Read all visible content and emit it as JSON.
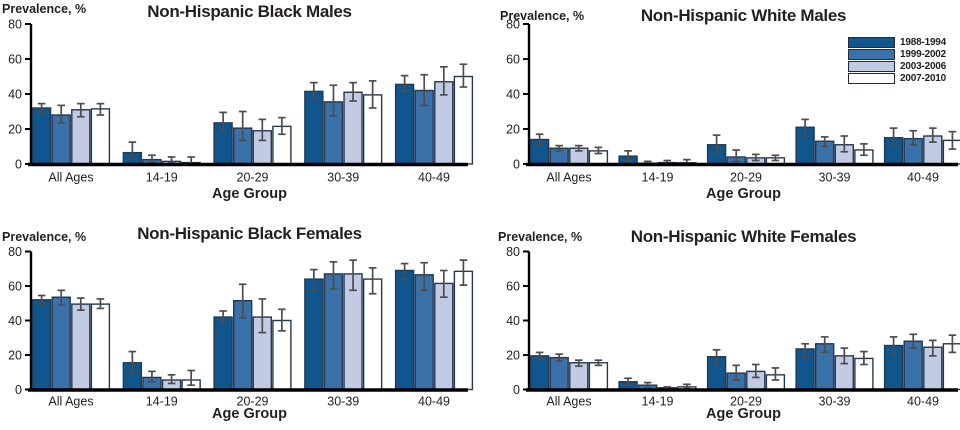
{
  "figure": {
    "background": "#ffffff"
  },
  "colors": {
    "series_fills": [
      "#10568E",
      "#3B71A9",
      "#C2CBE3",
      "#FFFFFF"
    ],
    "bar_outline": "#25384E",
    "error_bar": "#4D4D4D",
    "axis": "#000000",
    "text": "#231F20"
  },
  "legend": {
    "labels": [
      "1988-1994",
      "1999-2002",
      "2003-2006",
      "2007-2010"
    ]
  },
  "chart_data": [
    {
      "type": "bar",
      "title": "Non-Hispanic Black Males",
      "ylabel": "Prevalence, %",
      "xlabel": "Age Group",
      "categories": [
        "All Ages",
        "14-19",
        "20-29",
        "30-39",
        "40-49"
      ],
      "ylim": [
        0,
        80
      ],
      "yticks": [
        0,
        20,
        40,
        60,
        80
      ],
      "error_bars": true,
      "legend": false,
      "series": [
        {
          "name": "1988-1994",
          "values": [
            32,
            6.5,
            23.5,
            41.5,
            45.5
          ],
          "err_low": [
            29,
            3,
            18.5,
            37,
            41.5
          ],
          "err_high": [
            34.5,
            12.5,
            29.5,
            46.5,
            50.5
          ]
        },
        {
          "name": "1999-2002",
          "values": [
            28,
            2.5,
            20.5,
            35.5,
            42
          ],
          "err_low": [
            23.5,
            1,
            13.5,
            27.5,
            33.5
          ],
          "err_high": [
            33.5,
            5,
            30,
            45,
            51
          ]
        },
        {
          "name": "2003-2006",
          "values": [
            31,
            1.5,
            19,
            41,
            47
          ],
          "err_low": [
            27,
            0.5,
            13.5,
            36,
            39.5
          ],
          "err_high": [
            34.5,
            4,
            25.5,
            46.5,
            55.5
          ]
        },
        {
          "name": "2007-2010",
          "values": [
            31.5,
            0.8,
            21.5,
            39.5,
            50
          ],
          "err_low": [
            28,
            0,
            17,
            32,
            44
          ],
          "err_high": [
            34.5,
            4,
            26.5,
            47.5,
            57
          ]
        }
      ]
    },
    {
      "type": "bar",
      "title": "Non-Hispanic White Males",
      "ylabel": "Prevalence, %",
      "xlabel": "Age Group",
      "categories": [
        "All Ages",
        "14-19",
        "20-29",
        "30-39",
        "40-49"
      ],
      "ylim": [
        0,
        80
      ],
      "yticks": [
        0,
        20,
        40,
        60,
        80
      ],
      "error_bars": true,
      "legend": true,
      "series": [
        {
          "name": "1988-1994",
          "values": [
            14,
            4.5,
            11,
            21,
            15
          ],
          "err_low": [
            11,
            2,
            6,
            16,
            10.5
          ],
          "err_high": [
            17,
            7.5,
            16.5,
            25.5,
            20.5
          ]
        },
        {
          "name": "1999-2002",
          "values": [
            9,
            0.5,
            4,
            13,
            14.5
          ],
          "err_low": [
            7.5,
            0.1,
            1.5,
            10,
            11
          ],
          "err_high": [
            10.5,
            1.5,
            8,
            15.5,
            19
          ]
        },
        {
          "name": "2003-2006",
          "values": [
            9,
            0.8,
            3.5,
            11,
            16
          ],
          "err_low": [
            7.5,
            0.3,
            2,
            7,
            12.5
          ],
          "err_high": [
            10.5,
            2,
            5.5,
            16,
            20.5
          ]
        },
        {
          "name": "2007-2010",
          "values": [
            7.5,
            0.7,
            3.5,
            8,
            13.5
          ],
          "err_low": [
            6,
            0,
            2,
            5,
            8.5
          ],
          "err_high": [
            9.5,
            2.5,
            5,
            11.5,
            18.5
          ]
        }
      ]
    },
    {
      "type": "bar",
      "title": "Non-Hispanic Black Females",
      "ylabel": "Prevalence, %",
      "xlabel": "Age Group",
      "categories": [
        "All Ages",
        "14-19",
        "20-29",
        "30-39",
        "40-49"
      ],
      "ylim": [
        0,
        80
      ],
      "yticks": [
        0,
        20,
        40,
        60,
        80
      ],
      "error_bars": true,
      "legend": false,
      "series": [
        {
          "name": "1988-1994",
          "values": [
            52,
            15.5,
            42,
            64,
            69
          ],
          "err_low": [
            49.5,
            10,
            38.5,
            57.5,
            64
          ],
          "err_high": [
            54.5,
            22,
            45.5,
            69.5,
            73
          ]
        },
        {
          "name": "1999-2002",
          "values": [
            53.5,
            7,
            51.5,
            67,
            66.5
          ],
          "err_low": [
            49,
            4.5,
            41.5,
            58.5,
            57.5
          ],
          "err_high": [
            57.5,
            10.5,
            61,
            74,
            73.5
          ]
        },
        {
          "name": "2003-2006",
          "values": [
            49.5,
            5.5,
            42,
            67,
            61.5
          ],
          "err_low": [
            46,
            3.5,
            33,
            57.5,
            53.5
          ],
          "err_high": [
            53,
            8.5,
            52.5,
            75,
            69
          ]
        },
        {
          "name": "2007-2010",
          "values": [
            49.5,
            5.5,
            40,
            64,
            68.5
          ],
          "err_low": [
            47,
            2.5,
            34,
            55.5,
            60.5
          ],
          "err_high": [
            52.5,
            11,
            46.5,
            70.5,
            75
          ]
        }
      ]
    },
    {
      "type": "bar",
      "title": "Non-Hispanic White Females",
      "ylabel": "Prevalence, %",
      "xlabel": "Age Group",
      "categories": [
        "All Ages",
        "14-19",
        "20-29",
        "30-39",
        "40-49"
      ],
      "ylim": [
        0,
        80
      ],
      "yticks": [
        0,
        20,
        40,
        60,
        80
      ],
      "error_bars": true,
      "legend": false,
      "series": [
        {
          "name": "1988-1994",
          "values": [
            19.5,
            4.5,
            19,
            23.5,
            25.5
          ],
          "err_low": [
            17.5,
            2.5,
            15,
            19,
            20
          ],
          "err_high": [
            21.5,
            6.5,
            23,
            26.5,
            30.5
          ]
        },
        {
          "name": "1999-2002",
          "values": [
            18.5,
            2.5,
            9.5,
            26.5,
            28
          ],
          "err_low": [
            16.5,
            1,
            5.5,
            21.5,
            24
          ],
          "err_high": [
            20.5,
            4,
            14,
            30.5,
            32
          ]
        },
        {
          "name": "2003-2006",
          "values": [
            15.5,
            1,
            10.5,
            19.5,
            24.5
          ],
          "err_low": [
            13.5,
            0.5,
            7,
            15,
            19.5
          ],
          "err_high": [
            17,
            1.5,
            14.5,
            24,
            28.5
          ]
        },
        {
          "name": "2007-2010",
          "values": [
            15.5,
            1.5,
            8.5,
            18,
            26.5
          ],
          "err_low": [
            14,
            0.5,
            5.5,
            14.5,
            21.5
          ],
          "err_high": [
            17,
            3,
            12.5,
            22,
            31.5
          ]
        }
      ]
    }
  ]
}
